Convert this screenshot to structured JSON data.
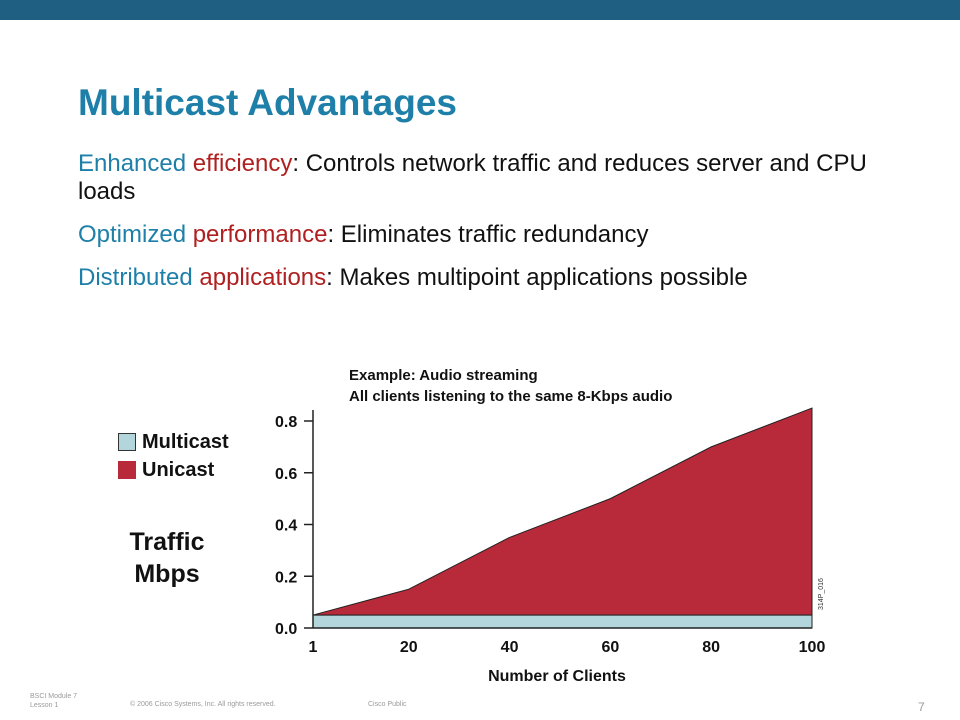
{
  "slide": {
    "title": "Multicast Advantages",
    "bullets": [
      {
        "lead": "Enhanced ",
        "key": "efficiency",
        "rest": ": Controls network traffic and reduces server and CPU loads"
      },
      {
        "lead": "Optimized ",
        "key": "performance",
        "rest": ": Eliminates traffic redundancy"
      },
      {
        "lead": "Distributed ",
        "key": "applications",
        "rest": ": Makes multipoint applications possible"
      }
    ]
  },
  "colors": {
    "title": "#1e7fa8",
    "accent_red": "#b02020",
    "unicast": "#b82a3a",
    "multicast": "#b3d6dc",
    "top_bar": "#1f5f82"
  },
  "chart_data": {
    "type": "area",
    "title": "Example: Audio streaming",
    "subtitle": "All clients listening to the same 8-Kbps audio",
    "xlabel": "Number of Clients",
    "ylabel": "Traffic Mbps",
    "x": [
      1,
      20,
      40,
      60,
      80,
      100
    ],
    "x_tick_labels": [
      "1",
      "20",
      "40",
      "60",
      "80",
      "100"
    ],
    "y_tick_labels": [
      "0.0",
      "0.2",
      "0.4",
      "0.6",
      "0.8"
    ],
    "y_ticks": [
      0,
      0.2,
      0.4,
      0.6,
      0.8
    ],
    "xlim": [
      1,
      100
    ],
    "ylim": [
      0,
      0.8
    ],
    "series": [
      {
        "name": "Multicast",
        "values": [
          0.05,
          0.05,
          0.05,
          0.05,
          0.05,
          0.05
        ]
      },
      {
        "name": "Unicast",
        "values": [
          0.05,
          0.15,
          0.35,
          0.5,
          0.7,
          0.85
        ]
      }
    ],
    "side_label": "314P_016"
  },
  "footer": {
    "line1": "BSCI Module 7",
    "line2": "Lesson 1",
    "copyright": "© 2006 Cisco Systems, Inc. All rights reserved.",
    "classification": "Cisco Public",
    "page": "7"
  }
}
